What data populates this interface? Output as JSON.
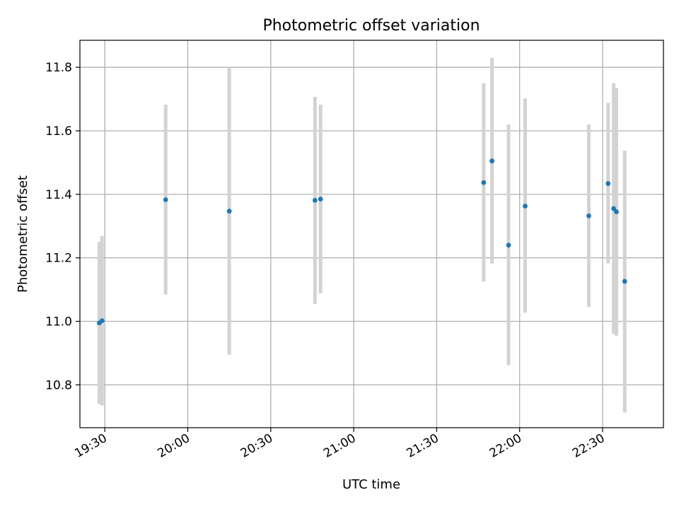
{
  "chart_data": {
    "type": "scatter",
    "title": "Photometric offset variation",
    "xlabel": "UTC time",
    "ylabel": "Photometric offset",
    "x_unit": "UTC time of day (HH:MM)",
    "xlim": [
      "19:21",
      "22:52"
    ],
    "ylim": [
      10.665,
      11.885
    ],
    "x_ticks": [
      "19:30",
      "20:00",
      "20:30",
      "21:00",
      "21:30",
      "22:00",
      "22:30"
    ],
    "y_ticks": [
      10.8,
      11.0,
      11.2,
      11.4,
      11.6,
      11.8
    ],
    "y_tick_labels": [
      "10.8",
      "11.0",
      "11.2",
      "11.4",
      "11.6",
      "11.8"
    ],
    "grid": true,
    "series": [
      {
        "points": [
          {
            "time": "19:28",
            "y": 10.995,
            "err_low": 10.74,
            "err_high": 11.25
          },
          {
            "time": "19:29",
            "y": 11.002,
            "err_low": 10.735,
            "err_high": 11.268
          },
          {
            "time": "19:52",
            "y": 11.383,
            "err_low": 11.085,
            "err_high": 11.682
          },
          {
            "time": "20:15",
            "y": 11.347,
            "err_low": 10.895,
            "err_high": 11.8
          },
          {
            "time": "20:46",
            "y": 11.381,
            "err_low": 11.055,
            "err_high": 11.707
          },
          {
            "time": "20:48",
            "y": 11.385,
            "err_low": 11.088,
            "err_high": 11.682
          },
          {
            "time": "21:47",
            "y": 11.437,
            "err_low": 11.125,
            "err_high": 11.75
          },
          {
            "time": "21:50",
            "y": 11.505,
            "err_low": 11.182,
            "err_high": 11.83
          },
          {
            "time": "21:56",
            "y": 11.24,
            "err_low": 10.862,
            "err_high": 11.62
          },
          {
            "time": "22:02",
            "y": 11.363,
            "err_low": 11.027,
            "err_high": 11.702
          },
          {
            "time": "22:25",
            "y": 11.332,
            "err_low": 11.045,
            "err_high": 11.62
          },
          {
            "time": "22:32",
            "y": 11.434,
            "err_low": 11.182,
            "err_high": 11.688
          },
          {
            "time": "22:34",
            "y": 11.355,
            "err_low": 10.96,
            "err_high": 11.75
          },
          {
            "time": "22:35",
            "y": 11.345,
            "err_low": 10.955,
            "err_high": 11.735
          },
          {
            "time": "22:38",
            "y": 11.126,
            "err_low": 10.713,
            "err_high": 11.538
          }
        ]
      }
    ],
    "colors": {
      "marker": "#1f77b4",
      "errorbar": "#d3d3d3",
      "grid": "#b0b0b0",
      "axes": "#000000"
    }
  }
}
